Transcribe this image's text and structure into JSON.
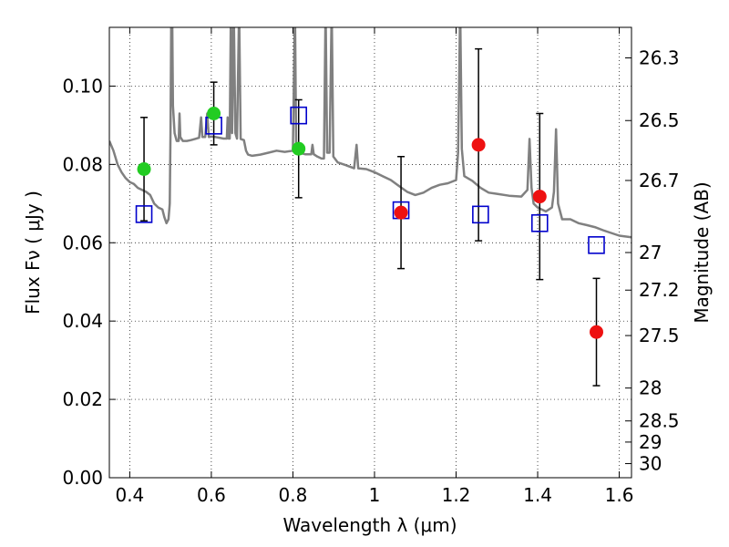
{
  "chart_data": {
    "type": "scatter",
    "title": "",
    "xlabel": "Wavelength  λ (μm)",
    "ylabel": "Flux  Fν  ( μJy )",
    "y2label": "Magnitude (AB)",
    "xlim": [
      0.35,
      1.63
    ],
    "ylim": [
      0.0,
      0.115
    ],
    "grid": true,
    "legend": "none",
    "xticks": [
      0.4,
      0.6,
      0.8,
      1.0,
      1.2,
      1.4,
      1.6
    ],
    "xtick_labels": [
      "0.4",
      "0.6",
      "0.8",
      "1",
      "1.2",
      "1.4",
      "1.6"
    ],
    "yticks": [
      0.0,
      0.02,
      0.04,
      0.06,
      0.08,
      0.1
    ],
    "ytick_labels": [
      "0.00",
      "0.02",
      "0.04",
      "0.06",
      "0.08",
      "0.10"
    ],
    "y2ticks": [
      {
        "label": "26.3",
        "flux": 0.1072
      },
      {
        "label": "26.5",
        "flux": 0.0912
      },
      {
        "label": "26.7",
        "flux": 0.0759
      },
      {
        "label": "27",
        "flux": 0.0575
      },
      {
        "label": "27.2",
        "flux": 0.0479
      },
      {
        "label": "27.5",
        "flux": 0.0363
      },
      {
        "label": "28",
        "flux": 0.0229
      },
      {
        "label": "28.5",
        "flux": 0.0145
      },
      {
        "label": "29",
        "flux": 0.0091
      },
      {
        "label": "30",
        "flux": 0.0036
      }
    ],
    "colors": {
      "sed": "#808080",
      "green": "#22cc22",
      "red": "#ee1111",
      "model": "#0000cc",
      "errorbar": "#000000"
    },
    "series": [
      {
        "marker": "green-circle",
        "points": [
          {
            "x": 0.435,
            "y": 0.0788,
            "err": 0.0132
          },
          {
            "x": 0.606,
            "y": 0.093,
            "err": 0.008
          },
          {
            "x": 0.814,
            "y": 0.084,
            "err": 0.0125
          }
        ]
      },
      {
        "marker": "red-circle",
        "points": [
          {
            "x": 1.065,
            "y": 0.0677,
            "err": 0.0143
          },
          {
            "x": 1.255,
            "y": 0.085,
            "err": 0.0245
          },
          {
            "x": 1.405,
            "y": 0.0718,
            "err": 0.0212
          },
          {
            "x": 1.544,
            "y": 0.0372,
            "err": 0.0137
          }
        ]
      },
      {
        "marker": "blue-open-square",
        "points": [
          {
            "x": 0.435,
            "y": 0.0673
          },
          {
            "x": 0.606,
            "y": 0.0899
          },
          {
            "x": 0.814,
            "y": 0.0925
          },
          {
            "x": 1.065,
            "y": 0.0683
          },
          {
            "x": 1.26,
            "y": 0.0672
          },
          {
            "x": 1.405,
            "y": 0.065
          },
          {
            "x": 1.544,
            "y": 0.0594
          }
        ]
      },
      {
        "marker": "gray-line",
        "points": [
          [
            0.35,
            0.086
          ],
          [
            0.36,
            0.0835
          ],
          [
            0.37,
            0.08
          ],
          [
            0.38,
            0.078
          ],
          [
            0.39,
            0.0765
          ],
          [
            0.4,
            0.0755
          ],
          [
            0.41,
            0.075
          ],
          [
            0.42,
            0.074
          ],
          [
            0.43,
            0.0735
          ],
          [
            0.44,
            0.073
          ],
          [
            0.45,
            0.0722
          ],
          [
            0.46,
            0.07
          ],
          [
            0.47,
            0.069
          ],
          [
            0.48,
            0.0685
          ],
          [
            0.485,
            0.0665
          ],
          [
            0.49,
            0.065
          ],
          [
            0.495,
            0.066
          ],
          [
            0.498,
            0.07
          ],
          [
            0.5,
            0.088
          ],
          [
            0.502,
            0.12
          ],
          [
            0.504,
            0.12
          ],
          [
            0.506,
            0.095
          ],
          [
            0.51,
            0.088
          ],
          [
            0.515,
            0.086
          ],
          [
            0.52,
            0.086
          ],
          [
            0.522,
            0.093
          ],
          [
            0.524,
            0.087
          ],
          [
            0.53,
            0.086
          ],
          [
            0.54,
            0.086
          ],
          [
            0.55,
            0.0862
          ],
          [
            0.56,
            0.0865
          ],
          [
            0.57,
            0.0868
          ],
          [
            0.575,
            0.092
          ],
          [
            0.578,
            0.087
          ],
          [
            0.585,
            0.087
          ],
          [
            0.59,
            0.093
          ],
          [
            0.594,
            0.087
          ],
          [
            0.6,
            0.0871
          ],
          [
            0.61,
            0.087
          ],
          [
            0.62,
            0.0868
          ],
          [
            0.63,
            0.0866
          ],
          [
            0.638,
            0.0866
          ],
          [
            0.64,
            0.092
          ],
          [
            0.642,
            0.0866
          ],
          [
            0.645,
            0.0866
          ],
          [
            0.648,
            0.12
          ],
          [
            0.651,
            0.088
          ],
          [
            0.655,
            0.12
          ],
          [
            0.659,
            0.088
          ],
          [
            0.663,
            0.0866
          ],
          [
            0.668,
            0.12
          ],
          [
            0.672,
            0.0865
          ],
          [
            0.68,
            0.0862
          ],
          [
            0.685,
            0.0835
          ],
          [
            0.69,
            0.0825
          ],
          [
            0.7,
            0.0822
          ],
          [
            0.72,
            0.0825
          ],
          [
            0.74,
            0.083
          ],
          [
            0.76,
            0.0835
          ],
          [
            0.78,
            0.0832
          ],
          [
            0.8,
            0.0835
          ],
          [
            0.805,
            0.12
          ],
          [
            0.808,
            0.084
          ],
          [
            0.815,
            0.083
          ],
          [
            0.83,
            0.0826
          ],
          [
            0.845,
            0.0826
          ],
          [
            0.848,
            0.085
          ],
          [
            0.851,
            0.0826
          ],
          [
            0.86,
            0.082
          ],
          [
            0.87,
            0.0815
          ],
          [
            0.876,
            0.0815
          ],
          [
            0.88,
            0.12
          ],
          [
            0.884,
            0.083
          ],
          [
            0.89,
            0.083
          ],
          [
            0.895,
            0.12
          ],
          [
            0.899,
            0.082
          ],
          [
            0.91,
            0.0805
          ],
          [
            0.93,
            0.0798
          ],
          [
            0.95,
            0.079
          ],
          [
            0.956,
            0.085
          ],
          [
            0.96,
            0.079
          ],
          [
            0.98,
            0.0788
          ],
          [
            1.0,
            0.078
          ],
          [
            1.02,
            0.077
          ],
          [
            1.04,
            0.076
          ],
          [
            1.06,
            0.0745
          ],
          [
            1.08,
            0.073
          ],
          [
            1.1,
            0.0722
          ],
          [
            1.12,
            0.0728
          ],
          [
            1.14,
            0.074
          ],
          [
            1.16,
            0.0748
          ],
          [
            1.18,
            0.0752
          ],
          [
            1.2,
            0.076
          ],
          [
            1.205,
            0.083
          ],
          [
            1.21,
            0.12
          ],
          [
            1.214,
            0.084
          ],
          [
            1.22,
            0.077
          ],
          [
            1.24,
            0.0758
          ],
          [
            1.26,
            0.074
          ],
          [
            1.28,
            0.0728
          ],
          [
            1.3,
            0.0725
          ],
          [
            1.33,
            0.072
          ],
          [
            1.36,
            0.0718
          ],
          [
            1.375,
            0.0735
          ],
          [
            1.38,
            0.0865
          ],
          [
            1.385,
            0.074
          ],
          [
            1.39,
            0.07
          ],
          [
            1.4,
            0.069
          ],
          [
            1.42,
            0.068
          ],
          [
            1.435,
            0.069
          ],
          [
            1.44,
            0.073
          ],
          [
            1.445,
            0.089
          ],
          [
            1.45,
            0.07
          ],
          [
            1.46,
            0.066
          ],
          [
            1.48,
            0.066
          ],
          [
            1.5,
            0.065
          ],
          [
            1.52,
            0.0645
          ],
          [
            1.54,
            0.064
          ],
          [
            1.56,
            0.0632
          ],
          [
            1.58,
            0.0625
          ],
          [
            1.6,
            0.0618
          ],
          [
            1.63,
            0.0614
          ]
        ]
      }
    ]
  }
}
